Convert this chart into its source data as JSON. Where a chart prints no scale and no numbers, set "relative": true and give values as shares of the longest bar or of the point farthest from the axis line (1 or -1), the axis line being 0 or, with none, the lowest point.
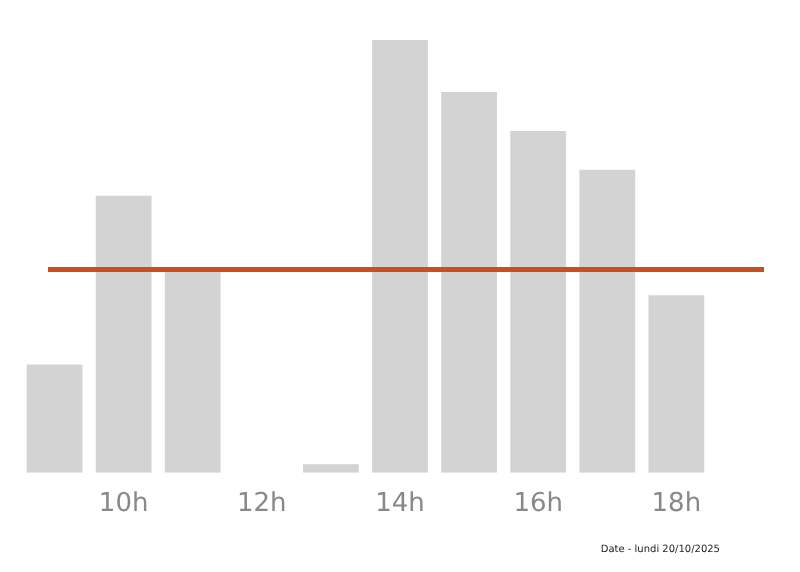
{
  "chart_data": {
    "type": "bar",
    "relative": true,
    "categories": [
      null,
      "10h",
      null,
      "12h",
      null,
      "14h",
      null,
      "16h",
      null,
      "18h",
      null
    ],
    "values": [
      0.25,
      0.64,
      0.47,
      0,
      0.02,
      1,
      0.88,
      0.79,
      0.7,
      0.41,
      0
    ],
    "color": "#d3d3d3",
    "ref_lines": [
      {
        "axis": "y",
        "value": 0.47,
        "color": "#c8501e"
      }
    ],
    "grid": false,
    "legend": false,
    "annotations": [
      "Date - lundi 20/10/2025"
    ]
  }
}
